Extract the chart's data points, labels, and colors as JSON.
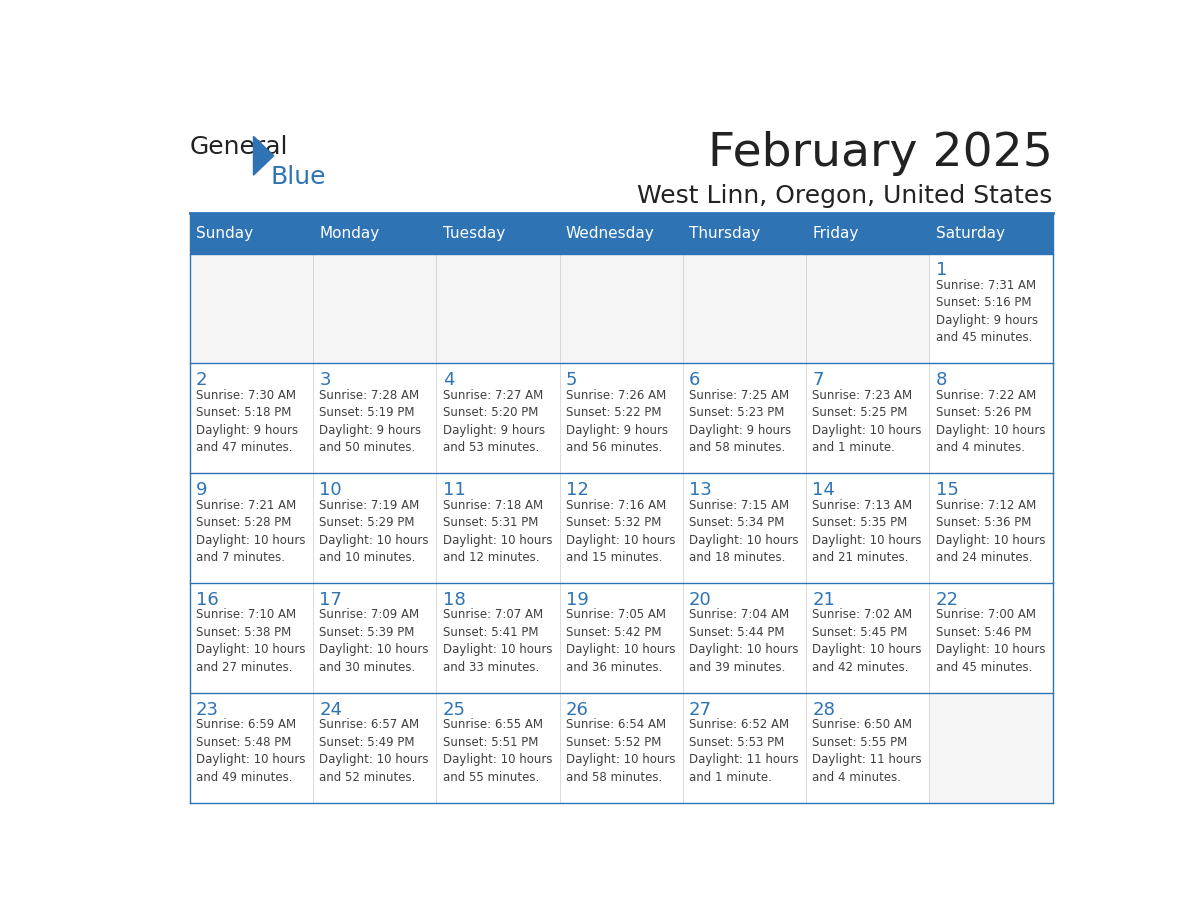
{
  "title": "February 2025",
  "subtitle": "West Linn, Oregon, United States",
  "header_bg": "#2E74B5",
  "header_text": "#FFFFFF",
  "border_color": "#2E74B5",
  "day_number_color": "#2E74B5",
  "info_color": "#404040",
  "days_of_week": [
    "Sunday",
    "Monday",
    "Tuesday",
    "Wednesday",
    "Thursday",
    "Friday",
    "Saturday"
  ],
  "logo_text1": "General",
  "logo_text2": "Blue",
  "logo_color1": "#222222",
  "logo_color2": "#2E74B5",
  "calendar": [
    [
      null,
      null,
      null,
      null,
      null,
      null,
      {
        "day": 1,
        "sunrise": "7:31 AM",
        "sunset": "5:16 PM",
        "daylight": "9 hours\nand 45 minutes."
      }
    ],
    [
      {
        "day": 2,
        "sunrise": "7:30 AM",
        "sunset": "5:18 PM",
        "daylight": "9 hours\nand 47 minutes."
      },
      {
        "day": 3,
        "sunrise": "7:28 AM",
        "sunset": "5:19 PM",
        "daylight": "9 hours\nand 50 minutes."
      },
      {
        "day": 4,
        "sunrise": "7:27 AM",
        "sunset": "5:20 PM",
        "daylight": "9 hours\nand 53 minutes."
      },
      {
        "day": 5,
        "sunrise": "7:26 AM",
        "sunset": "5:22 PM",
        "daylight": "9 hours\nand 56 minutes."
      },
      {
        "day": 6,
        "sunrise": "7:25 AM",
        "sunset": "5:23 PM",
        "daylight": "9 hours\nand 58 minutes."
      },
      {
        "day": 7,
        "sunrise": "7:23 AM",
        "sunset": "5:25 PM",
        "daylight": "10 hours\nand 1 minute."
      },
      {
        "day": 8,
        "sunrise": "7:22 AM",
        "sunset": "5:26 PM",
        "daylight": "10 hours\nand 4 minutes."
      }
    ],
    [
      {
        "day": 9,
        "sunrise": "7:21 AM",
        "sunset": "5:28 PM",
        "daylight": "10 hours\nand 7 minutes."
      },
      {
        "day": 10,
        "sunrise": "7:19 AM",
        "sunset": "5:29 PM",
        "daylight": "10 hours\nand 10 minutes."
      },
      {
        "day": 11,
        "sunrise": "7:18 AM",
        "sunset": "5:31 PM",
        "daylight": "10 hours\nand 12 minutes."
      },
      {
        "day": 12,
        "sunrise": "7:16 AM",
        "sunset": "5:32 PM",
        "daylight": "10 hours\nand 15 minutes."
      },
      {
        "day": 13,
        "sunrise": "7:15 AM",
        "sunset": "5:34 PM",
        "daylight": "10 hours\nand 18 minutes."
      },
      {
        "day": 14,
        "sunrise": "7:13 AM",
        "sunset": "5:35 PM",
        "daylight": "10 hours\nand 21 minutes."
      },
      {
        "day": 15,
        "sunrise": "7:12 AM",
        "sunset": "5:36 PM",
        "daylight": "10 hours\nand 24 minutes."
      }
    ],
    [
      {
        "day": 16,
        "sunrise": "7:10 AM",
        "sunset": "5:38 PM",
        "daylight": "10 hours\nand 27 minutes."
      },
      {
        "day": 17,
        "sunrise": "7:09 AM",
        "sunset": "5:39 PM",
        "daylight": "10 hours\nand 30 minutes."
      },
      {
        "day": 18,
        "sunrise": "7:07 AM",
        "sunset": "5:41 PM",
        "daylight": "10 hours\nand 33 minutes."
      },
      {
        "day": 19,
        "sunrise": "7:05 AM",
        "sunset": "5:42 PM",
        "daylight": "10 hours\nand 36 minutes."
      },
      {
        "day": 20,
        "sunrise": "7:04 AM",
        "sunset": "5:44 PM",
        "daylight": "10 hours\nand 39 minutes."
      },
      {
        "day": 21,
        "sunrise": "7:02 AM",
        "sunset": "5:45 PM",
        "daylight": "10 hours\nand 42 minutes."
      },
      {
        "day": 22,
        "sunrise": "7:00 AM",
        "sunset": "5:46 PM",
        "daylight": "10 hours\nand 45 minutes."
      }
    ],
    [
      {
        "day": 23,
        "sunrise": "6:59 AM",
        "sunset": "5:48 PM",
        "daylight": "10 hours\nand 49 minutes."
      },
      {
        "day": 24,
        "sunrise": "6:57 AM",
        "sunset": "5:49 PM",
        "daylight": "10 hours\nand 52 minutes."
      },
      {
        "day": 25,
        "sunrise": "6:55 AM",
        "sunset": "5:51 PM",
        "daylight": "10 hours\nand 55 minutes."
      },
      {
        "day": 26,
        "sunrise": "6:54 AM",
        "sunset": "5:52 PM",
        "daylight": "10 hours\nand 58 minutes."
      },
      {
        "day": 27,
        "sunrise": "6:52 AM",
        "sunset": "5:53 PM",
        "daylight": "11 hours\nand 1 minute."
      },
      {
        "day": 28,
        "sunrise": "6:50 AM",
        "sunset": "5:55 PM",
        "daylight": "11 hours\nand 4 minutes."
      },
      null
    ]
  ]
}
